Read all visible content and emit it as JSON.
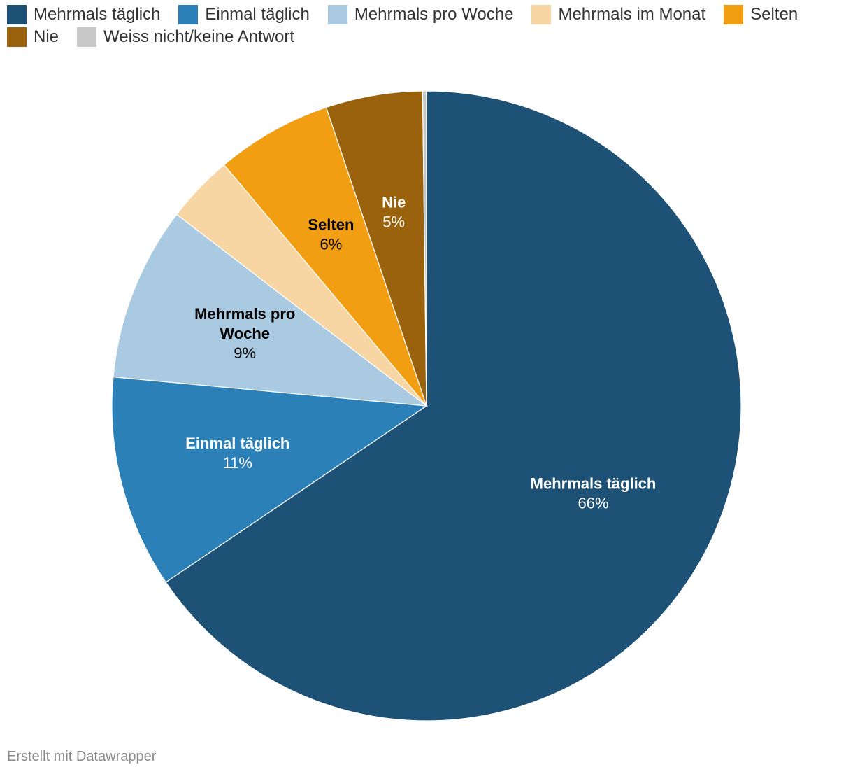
{
  "chart_data": {
    "type": "pie",
    "title": "",
    "unit": "%",
    "categories": [
      "Mehrmals täglich",
      "Einmal täglich",
      "Mehrmals pro Woche",
      "Mehrmals im Monat",
      "Selten",
      "Nie",
      "Weiss nicht/keine Antwort"
    ],
    "values": [
      66,
      11,
      9,
      3.5,
      6,
      5,
      0.2
    ],
    "colors": [
      "#1d5276",
      "#2b80b8",
      "#a9cae0",
      "#f8d6a3",
      "#f29e13",
      "#9b620e",
      "#c8c8c8"
    ],
    "label_text_colors": [
      "#ffffff",
      "#ffffff",
      "#000000",
      "#000000",
      "#000000",
      "#ffffff",
      "#000000"
    ],
    "labels": [
      {
        "name_lines": [
          "Mehrmals täglich"
        ],
        "pct": "66%"
      },
      {
        "name_lines": [
          "Einmal täglich"
        ],
        "pct": "11%"
      },
      {
        "name_lines": [
          "Mehrmals pro",
          "Woche"
        ],
        "pct": "9%"
      },
      null,
      {
        "name_lines": [
          "Selten"
        ],
        "pct": "6%"
      },
      {
        "name_lines": [
          "Nie"
        ],
        "pct": "5%"
      },
      null
    ],
    "legend_position": "top-left"
  },
  "footer": {
    "credit": "Erstellt mit Datawrapper"
  }
}
